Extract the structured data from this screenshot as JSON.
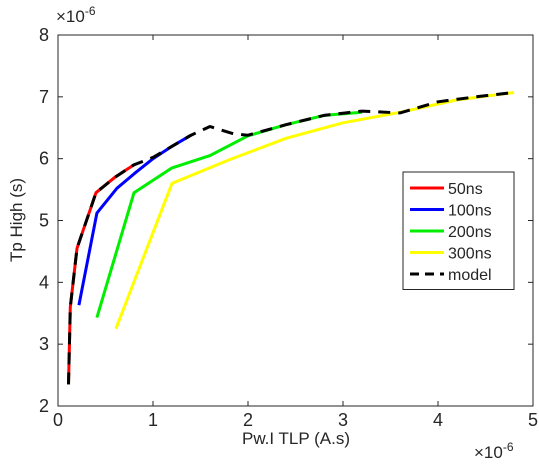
{
  "chart_data": {
    "type": "line",
    "title": "",
    "xlabel": "Pw.I TLP (A.s)",
    "ylabel": "Tp High (s)",
    "x_exponent_label": "×10",
    "x_exponent_power": "-6",
    "y_exponent_label": "×10",
    "y_exponent_power": "-6",
    "xlim": [
      0,
      5
    ],
    "ylim": [
      2,
      8
    ],
    "x_unit_scale": 1e-06,
    "y_unit_scale": 1e-06,
    "xticks": [
      0,
      1,
      2,
      3,
      4,
      5
    ],
    "yticks": [
      2,
      3,
      4,
      5,
      6,
      7,
      8
    ],
    "xtick_labels": [
      "0",
      "1",
      "2",
      "3",
      "4",
      "5"
    ],
    "ytick_labels": [
      "2",
      "3",
      "4",
      "5",
      "6",
      "7",
      "8"
    ],
    "grid": false,
    "legend_position": "right",
    "series": [
      {
        "name": "50ns",
        "color": "#ff0000",
        "dash": "solid",
        "x": [
          0.11,
          0.13,
          0.2,
          0.4,
          0.6,
          0.8
        ],
        "y": [
          2.35,
          3.6,
          4.55,
          5.45,
          5.7,
          5.9
        ]
      },
      {
        "name": "100ns",
        "color": "#0000ff",
        "dash": "solid",
        "x": [
          0.22,
          0.41,
          0.62,
          0.82,
          1.0,
          1.2,
          1.4
        ],
        "y": [
          3.63,
          5.12,
          5.52,
          5.78,
          6.0,
          6.2,
          6.38
        ]
      },
      {
        "name": "200ns",
        "color": "#00ee00",
        "dash": "solid",
        "x": [
          0.41,
          0.8,
          1.2,
          1.6,
          2.0,
          2.4,
          2.8,
          3.2
        ],
        "y": [
          3.43,
          5.45,
          5.85,
          6.05,
          6.37,
          6.55,
          6.7,
          6.75
        ]
      },
      {
        "name": "300ns",
        "color": "#ffff00",
        "dash": "solid",
        "x": [
          0.61,
          1.2,
          1.8,
          2.4,
          3.0,
          3.6,
          4.2,
          4.8
        ],
        "y": [
          3.25,
          5.6,
          5.98,
          6.33,
          6.58,
          6.75,
          6.95,
          7.07
        ]
      },
      {
        "name": "model",
        "color": "#000000",
        "dash": "dashed",
        "x": [
          0.11,
          0.13,
          0.2,
          0.4,
          0.6,
          0.8,
          1.0,
          1.2,
          1.4,
          1.6,
          1.7,
          1.85,
          2.0,
          2.4,
          2.8,
          3.2,
          3.6,
          4.0,
          4.4,
          4.8
        ],
        "y": [
          2.35,
          3.6,
          4.55,
          5.45,
          5.7,
          5.9,
          6.02,
          6.2,
          6.38,
          6.52,
          6.47,
          6.4,
          6.38,
          6.55,
          6.7,
          6.77,
          6.74,
          6.92,
          7.0,
          7.07
        ]
      }
    ]
  }
}
